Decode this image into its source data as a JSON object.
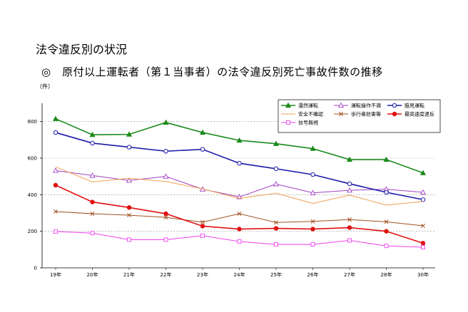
{
  "page": {
    "title": "法令違反別の状況",
    "subtitle": "◎　原付以上運転者（第１当事者）の法令違反別死亡事故件数の推移"
  },
  "chart_data": {
    "type": "line",
    "title": "原付以上運転者（第１当事者）の法令違反別死亡事故件数の推移",
    "ylabel": "（件）",
    "xlabel": "",
    "ylim": [
      0,
      900
    ],
    "yticks": [
      0,
      200,
      400,
      600,
      800
    ],
    "grid": "horizontal-dotted",
    "legend_position": "top-right",
    "categories": [
      "19年",
      "20年",
      "21年",
      "22年",
      "23年",
      "24年",
      "25年",
      "26年",
      "27年",
      "28年",
      "30年"
    ],
    "series": [
      {
        "name": "漫然運転",
        "color": "#1a8a1a",
        "marker": "triangle-filled",
        "width": 1.6,
        "values": [
          815,
          728,
          730,
          795,
          740,
          697,
          679,
          652,
          592,
          592,
          519
        ]
      },
      {
        "name": "運転操作不適",
        "color": "#a040c0",
        "marker": "triangle-open",
        "width": 1.0,
        "values": [
          532,
          505,
          478,
          500,
          430,
          388,
          458,
          410,
          424,
          430,
          413
        ]
      },
      {
        "name": "脇見運転",
        "color": "#1a1aa8",
        "marker": "circle-open",
        "width": 1.6,
        "values": [
          740,
          682,
          660,
          638,
          648,
          572,
          542,
          510,
          460,
          413,
          373
        ]
      },
      {
        "name": "安全不確認",
        "color": "#f0a050",
        "marker": "none",
        "width": 1.0,
        "values": [
          552,
          470,
          490,
          472,
          432,
          380,
          408,
          352,
          398,
          343,
          363
        ]
      },
      {
        "name": "歩行者妨害等",
        "color": "#a05020",
        "marker": "x",
        "width": 1.0,
        "values": [
          308,
          296,
          288,
          276,
          250,
          296,
          248,
          254,
          264,
          252,
          230
        ]
      },
      {
        "name": "最高速度違反",
        "color": "#e01010",
        "marker": "circle-filled",
        "width": 1.6,
        "values": [
          452,
          360,
          330,
          296,
          228,
          212,
          216,
          212,
          220,
          200,
          135
        ]
      },
      {
        "name": "信号無視",
        "color": "#f040f0",
        "marker": "square-open",
        "width": 1.0,
        "values": [
          198,
          190,
          154,
          154,
          176,
          144,
          128,
          128,
          150,
          120,
          113
        ]
      }
    ]
  }
}
